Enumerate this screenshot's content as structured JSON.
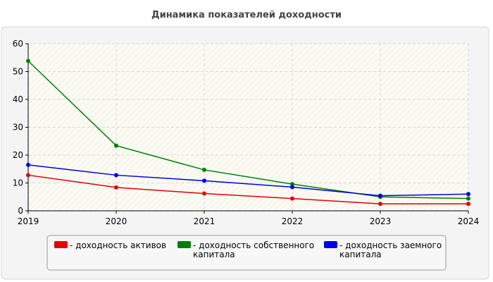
{
  "chart_data": {
    "type": "line",
    "title": "Динамика показателей доходности",
    "xlabel": "",
    "ylabel": "",
    "x": [
      "2019",
      "2020",
      "2021",
      "2022",
      "2023",
      "2024"
    ],
    "ylim": [
      0,
      60
    ],
    "yticks": [
      "0",
      "10",
      "20",
      "30",
      "40",
      "50",
      "60"
    ],
    "grid": true,
    "legend_position": "bottom",
    "series": [
      {
        "name": "доходность активов",
        "legend_lines": [
          "- доходность активов"
        ],
        "color": "#e60000",
        "values": [
          12.8,
          8.4,
          6.2,
          4.4,
          2.5,
          2.5
        ]
      },
      {
        "name": "доходность собственного капитала",
        "legend_lines": [
          "- доходность собственного",
          "капитала"
        ],
        "color": "#008000",
        "values": [
          53.8,
          23.4,
          14.7,
          9.6,
          5.0,
          4.4
        ]
      },
      {
        "name": "доходность заемного капитала",
        "legend_lines": [
          "- доходность заемного",
          "капитала"
        ],
        "color": "#0000e6",
        "values": [
          16.5,
          12.8,
          10.8,
          8.5,
          5.4,
          6.0
        ]
      }
    ]
  }
}
